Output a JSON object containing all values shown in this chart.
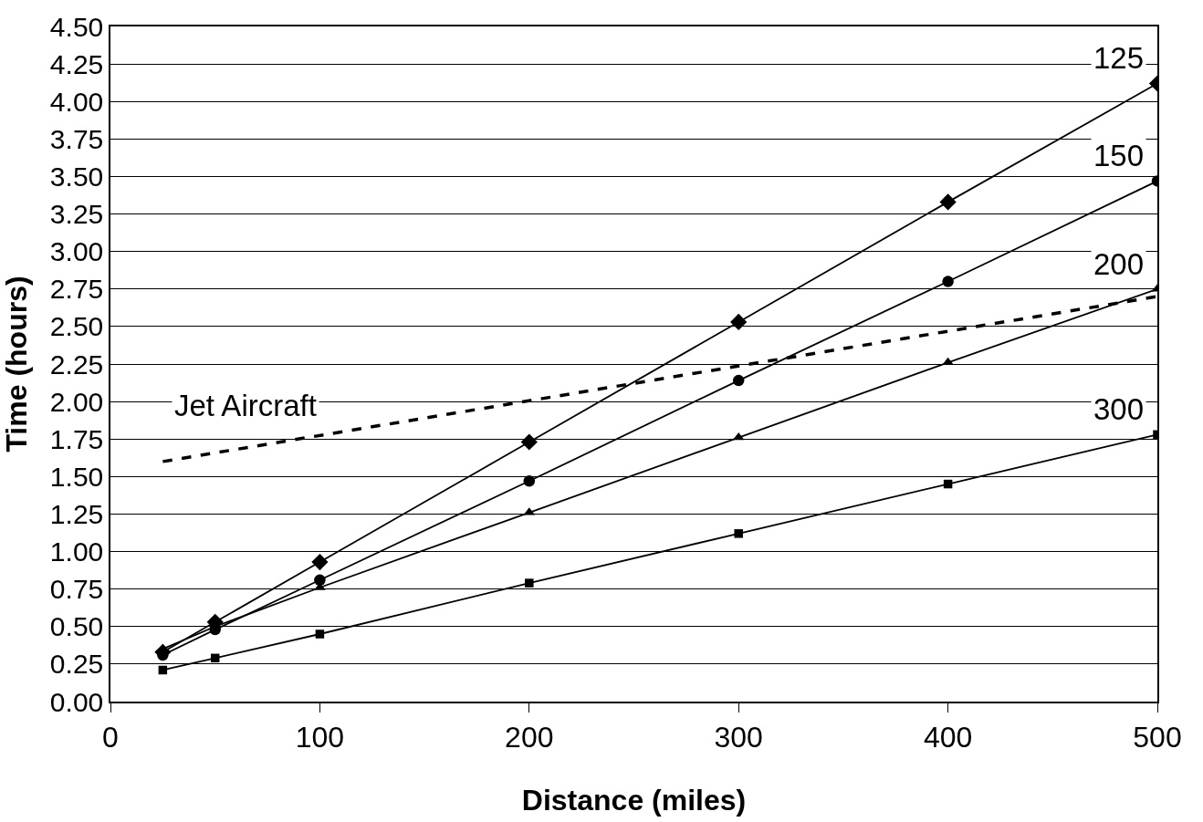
{
  "chart_data": {
    "type": "line",
    "xlabel": "Distance (miles)",
    "ylabel": "Time (hours)",
    "x": [
      25,
      50,
      100,
      200,
      300,
      400,
      500
    ],
    "series": [
      {
        "name": "125",
        "color": "#000000",
        "marker": "diamond",
        "line_style": "solid",
        "values": [
          0.33,
          0.53,
          0.93,
          1.73,
          2.53,
          3.33,
          4.12
        ]
      },
      {
        "name": "150",
        "color": "#000000",
        "marker": "circle",
        "line_style": "solid",
        "values": [
          0.31,
          0.48,
          0.81,
          1.47,
          2.14,
          2.8,
          3.47
        ]
      },
      {
        "name": "200",
        "color": "#000000",
        "marker": "triangle",
        "line_style": "solid",
        "values": [
          0.35,
          0.5,
          0.76,
          1.26,
          1.76,
          2.26,
          2.75
        ]
      },
      {
        "name": "300",
        "color": "#000000",
        "marker": "square",
        "line_style": "solid",
        "values": [
          0.21,
          0.29,
          0.45,
          0.79,
          1.12,
          1.45,
          1.78
        ]
      },
      {
        "name": "Jet Aircraft",
        "color": "#000000",
        "marker": "none",
        "line_style": "dashed",
        "x": [
          25,
          500
        ],
        "values": [
          1.6,
          2.7
        ]
      }
    ],
    "xlim": [
      0,
      500
    ],
    "xticks": [
      0,
      100,
      200,
      300,
      400,
      500
    ],
    "ylim": [
      0,
      4.5
    ],
    "yticks": [
      {
        "value": 0,
        "label": "0.00"
      },
      {
        "value": 0.25,
        "label": "0.25"
      },
      {
        "value": 0.5,
        "label": "0.50"
      },
      {
        "value": 0.75,
        "label": "0.75"
      },
      {
        "value": 1,
        "label": "1.00"
      },
      {
        "value": 1.25,
        "label": "1.25"
      },
      {
        "value": 1.5,
        "label": "1.50"
      },
      {
        "value": 1.75,
        "label": "1.75"
      },
      {
        "value": 2,
        "label": "2.00"
      },
      {
        "value": 2.25,
        "label": "2.25"
      },
      {
        "value": 2.5,
        "label": "2.50"
      },
      {
        "value": 2.75,
        "label": "2.75"
      },
      {
        "value": 3,
        "label": "3.00"
      },
      {
        "value": 3.25,
        "label": "3.25"
      },
      {
        "value": 3.5,
        "label": "3.50"
      },
      {
        "value": 3.75,
        "label": "3.75"
      },
      {
        "value": 4,
        "label": "4.00"
      },
      {
        "value": 4.25,
        "label": "4.25"
      },
      {
        "value": 4.5,
        "label": "4.50"
      }
    ],
    "grid": "y"
  }
}
